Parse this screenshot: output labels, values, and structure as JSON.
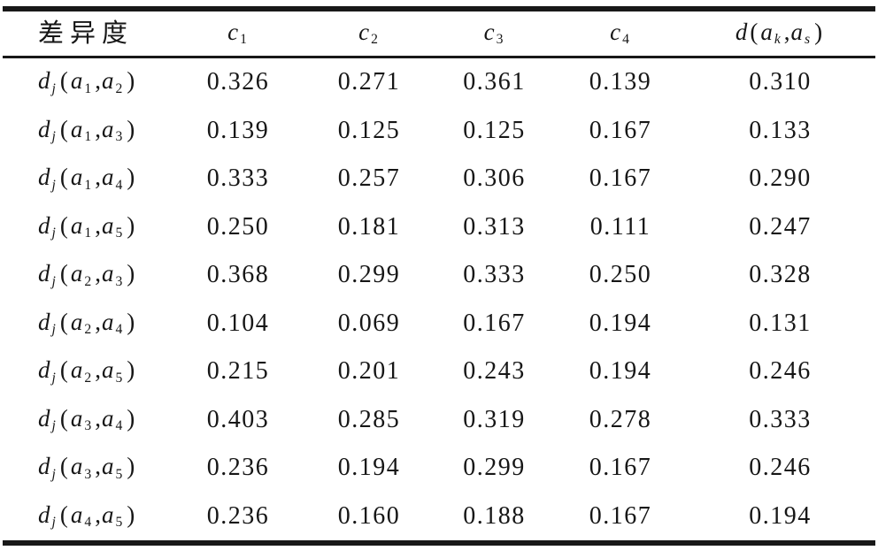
{
  "table": {
    "punctuation": {
      "open": "(",
      "comma": ",",
      "close": ")"
    },
    "header": {
      "label": "差异度",
      "criteria": [
        {
          "base": "c",
          "sub": "1"
        },
        {
          "base": "c",
          "sub": "2"
        },
        {
          "base": "c",
          "sub": "3"
        },
        {
          "base": "c",
          "sub": "4"
        }
      ],
      "aggregate": {
        "base": "d",
        "arg1": {
          "base": "a",
          "sub": "k"
        },
        "arg2": {
          "base": "a",
          "sub": "s"
        }
      }
    },
    "rows": [
      {
        "label": {
          "base": "d",
          "sub": "j",
          "arg1": {
            "base": "a",
            "sub": "1"
          },
          "arg2": {
            "base": "a",
            "sub": "2"
          }
        },
        "values": [
          "0.326",
          "0.271",
          "0.361",
          "0.139",
          "0.310"
        ]
      },
      {
        "label": {
          "base": "d",
          "sub": "j",
          "arg1": {
            "base": "a",
            "sub": "1"
          },
          "arg2": {
            "base": "a",
            "sub": "3"
          }
        },
        "values": [
          "0.139",
          "0.125",
          "0.125",
          "0.167",
          "0.133"
        ]
      },
      {
        "label": {
          "base": "d",
          "sub": "j",
          "arg1": {
            "base": "a",
            "sub": "1"
          },
          "arg2": {
            "base": "a",
            "sub": "4"
          }
        },
        "values": [
          "0.333",
          "0.257",
          "0.306",
          "0.167",
          "0.290"
        ]
      },
      {
        "label": {
          "base": "d",
          "sub": "j",
          "arg1": {
            "base": "a",
            "sub": "1"
          },
          "arg2": {
            "base": "a",
            "sub": "5"
          }
        },
        "values": [
          "0.250",
          "0.181",
          "0.313",
          "0.111",
          "0.247"
        ]
      },
      {
        "label": {
          "base": "d",
          "sub": "j",
          "arg1": {
            "base": "a",
            "sub": "2"
          },
          "arg2": {
            "base": "a",
            "sub": "3"
          }
        },
        "values": [
          "0.368",
          "0.299",
          "0.333",
          "0.250",
          "0.328"
        ]
      },
      {
        "label": {
          "base": "d",
          "sub": "j",
          "arg1": {
            "base": "a",
            "sub": "2"
          },
          "arg2": {
            "base": "a",
            "sub": "4"
          }
        },
        "values": [
          "0.104",
          "0.069",
          "0.167",
          "0.194",
          "0.131"
        ]
      },
      {
        "label": {
          "base": "d",
          "sub": "j",
          "arg1": {
            "base": "a",
            "sub": "2"
          },
          "arg2": {
            "base": "a",
            "sub": "5"
          }
        },
        "values": [
          "0.215",
          "0.201",
          "0.243",
          "0.194",
          "0.246"
        ]
      },
      {
        "label": {
          "base": "d",
          "sub": "j",
          "arg1": {
            "base": "a",
            "sub": "3"
          },
          "arg2": {
            "base": "a",
            "sub": "4"
          }
        },
        "values": [
          "0.403",
          "0.285",
          "0.319",
          "0.278",
          "0.333"
        ]
      },
      {
        "label": {
          "base": "d",
          "sub": "j",
          "arg1": {
            "base": "a",
            "sub": "3"
          },
          "arg2": {
            "base": "a",
            "sub": "5"
          }
        },
        "values": [
          "0.236",
          "0.194",
          "0.299",
          "0.167",
          "0.246"
        ]
      },
      {
        "label": {
          "base": "d",
          "sub": "j",
          "arg1": {
            "base": "a",
            "sub": "4"
          },
          "arg2": {
            "base": "a",
            "sub": "5"
          }
        },
        "values": [
          "0.236",
          "0.160",
          "0.188",
          "0.167",
          "0.194"
        ]
      }
    ]
  }
}
